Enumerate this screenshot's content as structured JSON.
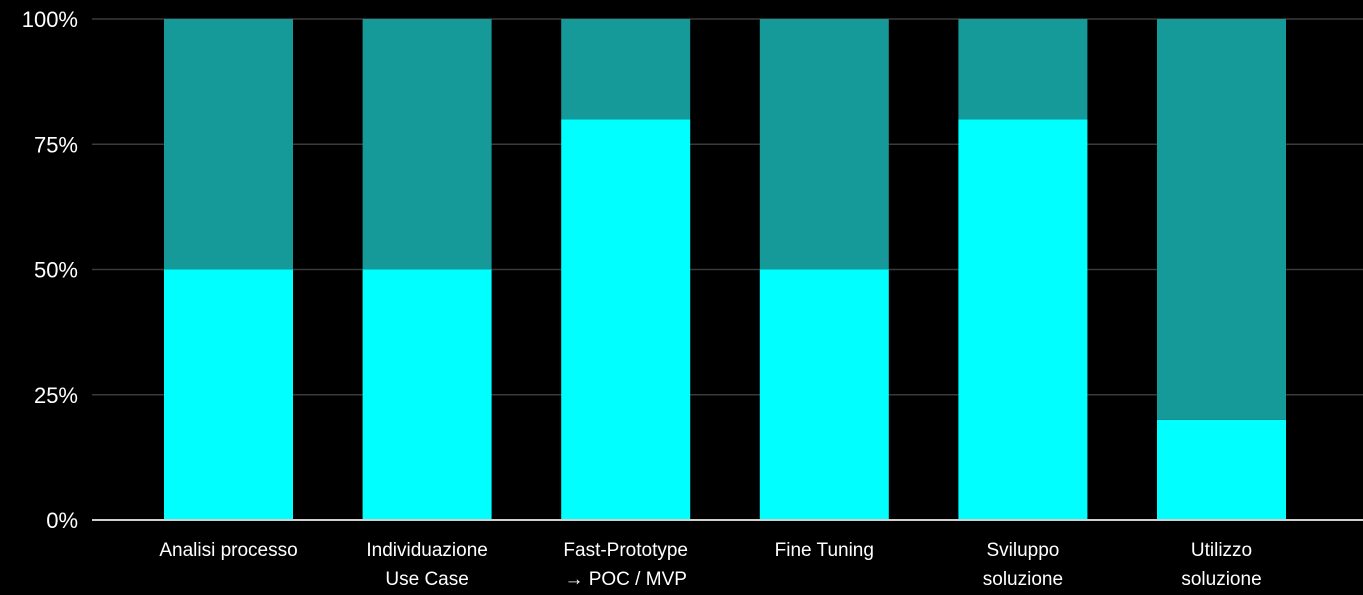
{
  "chart_data": {
    "type": "bar",
    "stacked": true,
    "categories": [
      [
        "Analisi processo"
      ],
      [
        "Individuazione",
        "Use Case"
      ],
      [
        "Fast-Prototype",
        "→ POC / MVP"
      ],
      [
        "Fine Tuning"
      ],
      [
        "Sviluppo",
        "soluzione"
      ],
      [
        "Utilizzo",
        "soluzione"
      ]
    ],
    "series": [
      {
        "values": [
          50,
          50,
          80,
          50,
          80,
          20
        ],
        "color": "#00ffff"
      },
      {
        "values": [
          50,
          50,
          20,
          50,
          20,
          80
        ],
        "color": "#169999"
      }
    ],
    "ylim": [
      0,
      100
    ],
    "yticks": [
      0,
      25,
      50,
      75,
      100
    ],
    "ytick_labels": [
      "0%",
      "25%",
      "50%",
      "75%",
      "100%"
    ],
    "grid": true,
    "title": "",
    "xlabel": "",
    "ylabel": "",
    "colors": {
      "background": "#000000",
      "gridline": "#3a3a3a",
      "axis": "#cfcfcf",
      "text": "#ffffff"
    }
  }
}
